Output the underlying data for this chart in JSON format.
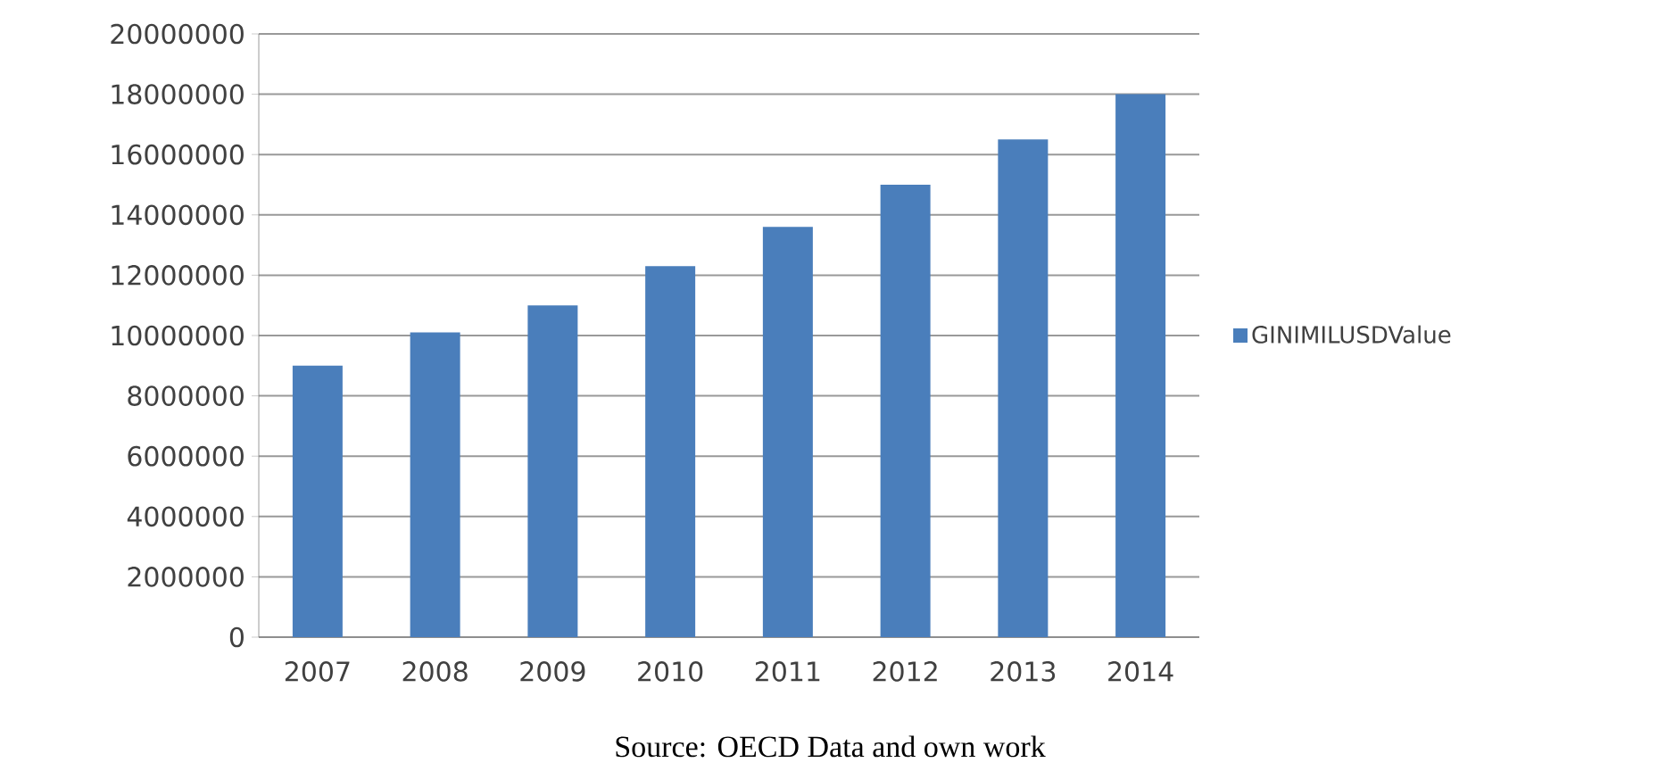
{
  "chart_data": {
    "type": "bar",
    "categories": [
      "2007",
      "2008",
      "2009",
      "2010",
      "2011",
      "2012",
      "2013",
      "2014"
    ],
    "series": [
      {
        "name": "GINIMILUSDValue",
        "color": "#4a7ebb",
        "values": [
          9000000,
          10100000,
          11000000,
          12300000,
          13600000,
          15000000,
          16500000,
          18000000
        ]
      }
    ],
    "ylim": [
      0,
      20000000
    ],
    "yticks": [
      0,
      2000000,
      4000000,
      6000000,
      8000000,
      10000000,
      12000000,
      14000000,
      16000000,
      18000000,
      20000000
    ],
    "grid": "y",
    "legend": "right",
    "annotations": [
      "Source: OECD Data and own work"
    ]
  }
}
